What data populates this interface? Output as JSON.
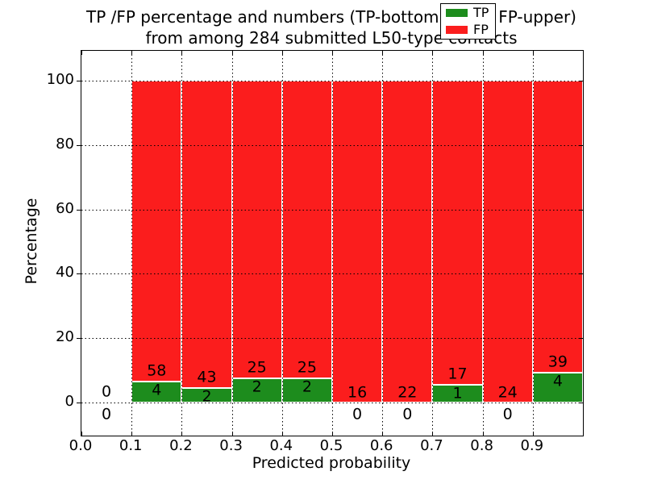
{
  "title": {
    "line1": "TP /FP percentage and numbers (TP-bottom value, FP-upper)",
    "line2": "from among 284 submitted L50-type contacts"
  },
  "chart_data": {
    "type": "bar",
    "stacked": true,
    "normalized_to_percent": true,
    "title": "TP /FP percentage and numbers (TP-bottom value, FP-upper) from among 284 submitted L50-type contacts",
    "total_contacts": 284,
    "categories": [
      "0.0-0.1",
      "0.1-0.2",
      "0.2-0.3",
      "0.3-0.4",
      "0.4-0.5",
      "0.5-0.6",
      "0.6-0.7",
      "0.7-0.8",
      "0.8-0.9",
      "0.9-1.0"
    ],
    "series": [
      {
        "name": "TP",
        "color": "#1d8c1d",
        "values": [
          0,
          4,
          2,
          2,
          2,
          0,
          0,
          1,
          0,
          4
        ]
      },
      {
        "name": "FP",
        "color": "#fb1d1d",
        "values": [
          0,
          58,
          43,
          25,
          25,
          16,
          22,
          17,
          24,
          39
        ]
      }
    ],
    "xlabel": "Predicted probability",
    "ylabel": "Percentage",
    "xticks": [
      "0.0",
      "0.1",
      "0.2",
      "0.3",
      "0.4",
      "0.5",
      "0.6",
      "0.7",
      "0.8",
      "0.9"
    ],
    "yticks": [
      0,
      20,
      40,
      60,
      80,
      100
    ],
    "xlim": [
      0.0,
      1.0
    ],
    "ylim": [
      -10,
      110
    ],
    "grid": "dotted",
    "legend": {
      "position": "upper right",
      "entries": [
        "TP",
        "FP"
      ]
    }
  }
}
